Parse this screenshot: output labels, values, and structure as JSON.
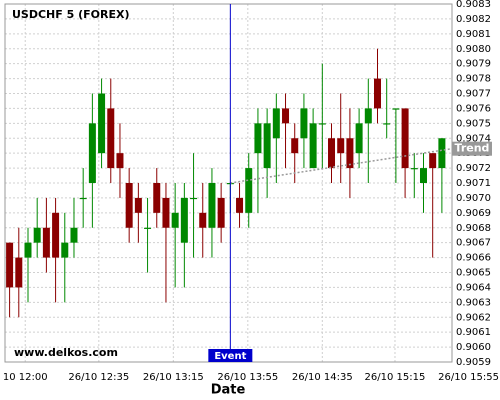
{
  "chart_data": {
    "type": "candlestick",
    "title": "USDCHF 5 (FOREX)",
    "watermark": "www.delkos.com",
    "x_label": "Date",
    "up_color": "#008800",
    "down_color": "#8b0000",
    "grid": true,
    "xlim": [
      -0.5,
      48.1
    ],
    "xticks": [
      {
        "value": 1.7,
        "label": "10 12:00"
      },
      {
        "value": 9.7,
        "label": "26/10 12:35"
      },
      {
        "value": 17.8,
        "label": "26/10 13:15"
      },
      {
        "value": 25.9,
        "label": "26/10 13:55"
      },
      {
        "value": 34,
        "label": "26/10 14:35"
      },
      {
        "value": 41.9,
        "label": "26/10 15:15"
      },
      {
        "value": 49.9,
        "label": "26/10 15:55"
      }
    ],
    "ylim": [
      0.9059,
      0.9083
    ],
    "yticks": [
      0.9059,
      {
        "value": 0.906,
        "label": "0.9060"
      },
      0.9061,
      0.9062,
      0.9063,
      0.9064,
      0.9065,
      0.9066,
      0.9067,
      0.9068,
      0.9069,
      {
        "value": 0.907,
        "label": "0.9070"
      },
      0.9071,
      0.9072,
      0.9073,
      0.9074,
      0.9075,
      0.9076,
      0.9077,
      0.9078,
      0.9079,
      {
        "value": 0.908,
        "label": "0.9080"
      },
      0.9081,
      0.9082,
      0.9083
    ],
    "open": [
      0.9067,
      0.9066,
      0.9066,
      0.9067,
      0.9068,
      0.9069,
      0.9066,
      0.9067,
      0.907,
      0.9071,
      0.9073,
      0.9076,
      0.9073,
      0.9071,
      0.907,
      0.9068,
      0.9071,
      0.907,
      0.9068,
      0.9067,
      0.907,
      0.9069,
      0.9068,
      0.907,
      0.9071,
      0.907,
      0.9069,
      0.9073,
      0.9072,
      0.9074,
      0.9076,
      0.9074,
      0.9074,
      0.9072,
      0.9075,
      0.9074,
      0.9074,
      0.9074,
      0.9073,
      0.9075,
      0.9078,
      0.9075,
      0.9076,
      0.9076,
      0.9072,
      0.9071,
      0.9073,
      0.9072
    ],
    "high": [
      0.9067,
      0.9068,
      0.9068,
      0.907,
      0.907,
      0.907,
      0.9069,
      0.907,
      0.9072,
      0.9077,
      0.9078,
      0.9078,
      0.9075,
      0.9072,
      0.9071,
      0.907,
      0.9072,
      0.9071,
      0.9071,
      0.9071,
      0.9073,
      0.9071,
      0.9072,
      0.9071,
      0.9071,
      0.9071,
      0.9073,
      0.9076,
      0.9076,
      0.9077,
      0.9077,
      0.9075,
      0.9077,
      0.9076,
      0.9079,
      0.9075,
      0.9077,
      0.9076,
      0.9076,
      0.9078,
      0.908,
      0.9078,
      0.9076,
      0.9076,
      0.9073,
      0.9073,
      0.9073,
      0.9074
    ],
    "low": [
      0.9062,
      0.9062,
      0.9063,
      0.9066,
      0.9065,
      0.9063,
      0.9063,
      0.9066,
      0.9068,
      0.9068,
      0.9072,
      0.9071,
      0.907,
      0.9067,
      0.9067,
      0.9065,
      0.9068,
      0.9063,
      0.9064,
      0.9064,
      0.9066,
      0.9066,
      0.9066,
      0.9067,
      0.9069,
      0.9068,
      0.9068,
      0.9069,
      0.907,
      0.9071,
      0.9072,
      0.9071,
      0.9072,
      0.9072,
      0.9072,
      0.9071,
      0.9071,
      0.907,
      0.9072,
      0.9071,
      0.9075,
      0.9074,
      0.9071,
      0.907,
      0.907,
      0.9069,
      0.9066,
      0.9069
    ],
    "close": [
      0.9064,
      0.9064,
      0.9067,
      0.9068,
      0.9066,
      0.9066,
      0.9067,
      0.9068,
      0.907,
      0.9075,
      0.9077,
      0.9072,
      0.9072,
      0.9068,
      0.9069,
      0.9068,
      0.9069,
      0.9068,
      0.9069,
      0.907,
      0.907,
      0.9068,
      0.9071,
      0.9068,
      0.9071,
      0.9069,
      0.9072,
      0.9075,
      0.9075,
      0.9076,
      0.9075,
      0.9073,
      0.9076,
      0.9075,
      0.9075,
      0.9072,
      0.9073,
      0.9072,
      0.9075,
      0.9076,
      0.9076,
      0.9075,
      0.9076,
      0.9072,
      0.9072,
      0.9072,
      0.9072,
      0.9074
    ],
    "event": {
      "label": "Event",
      "x": 24,
      "color": "#0000cc"
    },
    "trend": {
      "label": "Trend",
      "x": [
        24,
        48.1
      ],
      "y": [
        0.9071,
        0.90733
      ],
      "color": "#999999"
    }
  }
}
